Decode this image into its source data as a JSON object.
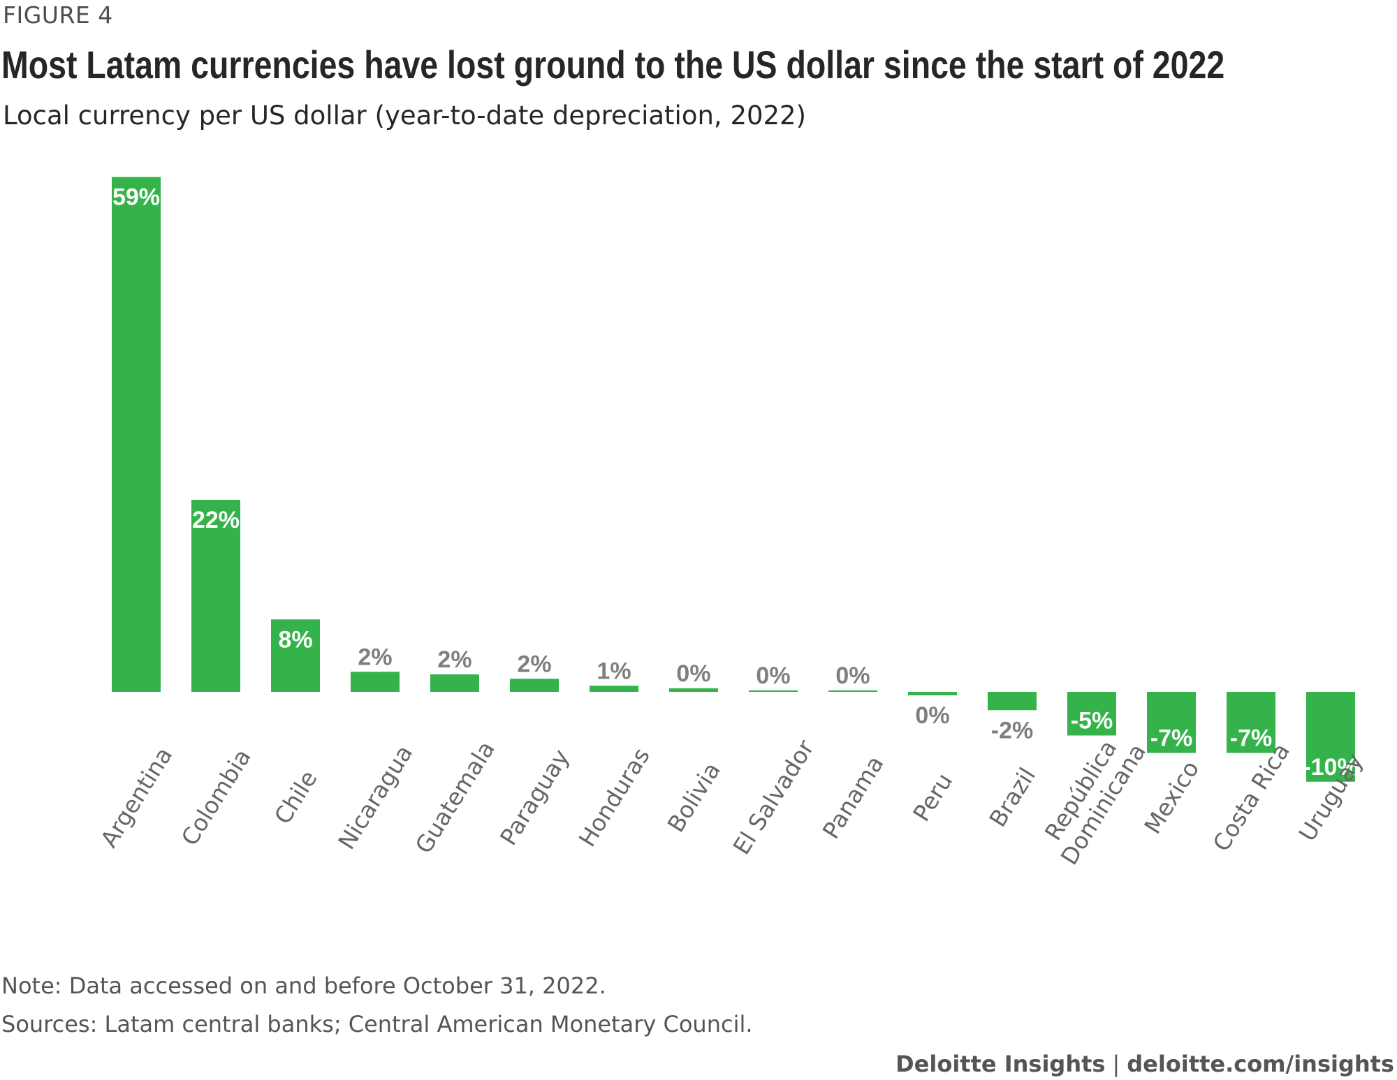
{
  "header": {
    "figure_label": "FIGURE 4",
    "title": "Most Latam currencies have lost ground to the US dollar since the start of 2022",
    "subtitle": "Local currency per US dollar (year-to-date depreciation, 2022)"
  },
  "footer": {
    "note": "Note: Data accessed on and before October 31, 2022.",
    "sources": "Sources: Latam central banks; Central American Monetary Council.",
    "brand": "Deloitte Insights",
    "separator": "|",
    "url": "deloitte.com/insights"
  },
  "colors": {
    "bar": "#34b34a",
    "label_inside": "#ffffff",
    "label_outside": "#7f7f7f",
    "axis_text": "#666666"
  },
  "chart_data": {
    "type": "bar",
    "title": "Most Latam currencies have lost ground to the US dollar since the start of 2022",
    "subtitle": "Local currency per US dollar (year-to-date depreciation, 2022)",
    "xlabel": "",
    "ylabel": "",
    "grid": false,
    "legend": "none",
    "ylim": [
      -10.4,
      59
    ],
    "categories": [
      "Argentina",
      "Colombia",
      "Chile",
      "Nicaragua",
      "Guatemala",
      "Paraguay",
      "Honduras",
      "Bolivia",
      "El Salvador",
      "Panama",
      "Peru",
      "Brazil",
      "República Dominicana",
      "Mexico",
      "Costa Rica",
      "Uruguay"
    ],
    "values": [
      59,
      22,
      8.3,
      2.3,
      2.0,
      1.5,
      0.7,
      0.4,
      0.1,
      0.0,
      -0.4,
      -2.1,
      -5.0,
      -7.0,
      -7.0,
      -10.3
    ],
    "data_labels": [
      "59%",
      "22%",
      "8%",
      "2%",
      "2%",
      "2%",
      "1%",
      "0%",
      "0%",
      "0%",
      "0%",
      "-2%",
      "-5%",
      "-7%",
      "-7%",
      "-10%"
    ]
  }
}
